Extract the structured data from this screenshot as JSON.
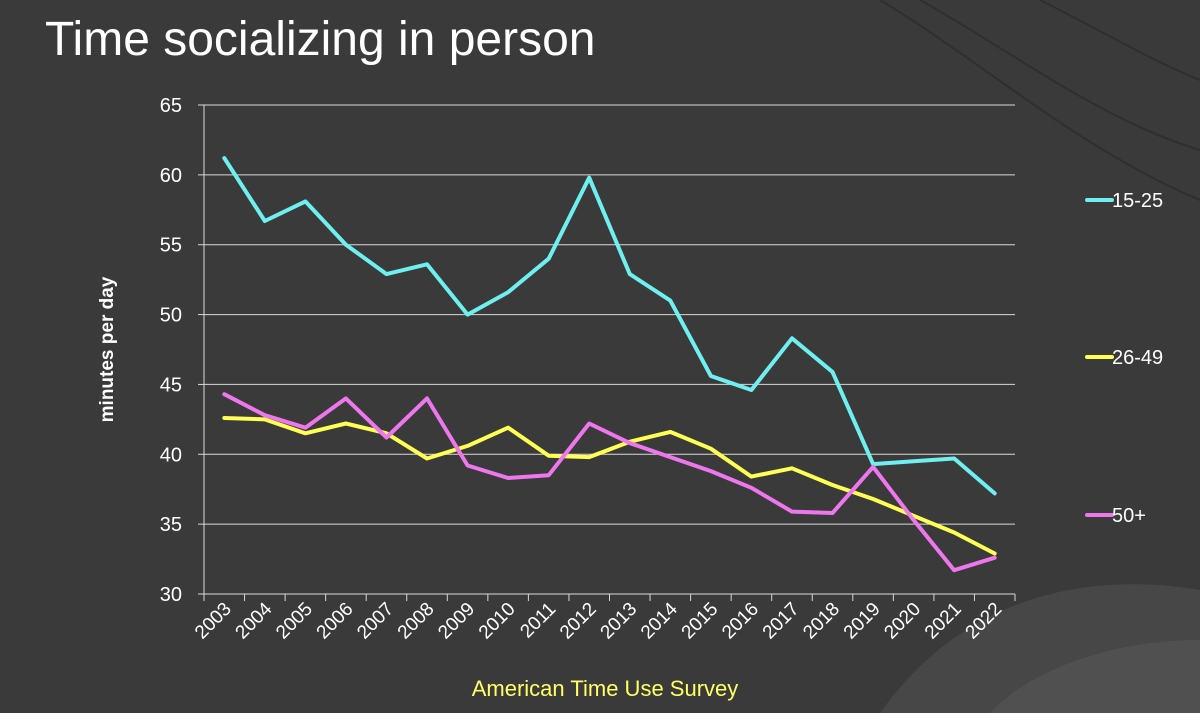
{
  "slide": {
    "title": "Time socializing in person",
    "source": "American Time Use Survey"
  },
  "colors": {
    "background": "#3a3a3a",
    "grid": "#d9d9d9",
    "text": "#ffffff",
    "source_text": "#ffff66"
  },
  "chart_data": {
    "type": "line",
    "title": "Time socializing in person",
    "xlabel": "",
    "ylabel": "minutes per day",
    "ylim": [
      30,
      65
    ],
    "yticks": [
      30,
      35,
      40,
      45,
      50,
      55,
      60,
      65
    ],
    "grid": true,
    "legend_position": "right",
    "x": [
      "2003",
      "2004",
      "2005",
      "2006",
      "2007",
      "2008",
      "2009",
      "2010",
      "2011",
      "2012",
      "2013",
      "2014",
      "2015",
      "2016",
      "2017",
      "2018",
      "2019",
      "2020",
      "2021",
      "2022"
    ],
    "series": [
      {
        "name": "15-25",
        "color": "#6ff0f0",
        "values": [
          61.2,
          56.7,
          58.1,
          55.0,
          52.9,
          53.6,
          50.0,
          51.6,
          54.0,
          59.8,
          52.9,
          51.0,
          45.6,
          44.6,
          48.3,
          45.9,
          39.3,
          39.5,
          39.7,
          37.2
        ]
      },
      {
        "name": "26-49",
        "color": "#ffff55",
        "values": [
          42.6,
          42.5,
          41.5,
          42.2,
          41.5,
          39.7,
          40.6,
          41.9,
          39.9,
          39.8,
          40.9,
          41.6,
          40.4,
          38.4,
          39.0,
          37.8,
          36.8,
          35.6,
          34.4,
          32.9
        ]
      },
      {
        "name": "50+",
        "color": "#ee77ee",
        "values": [
          44.3,
          42.8,
          41.9,
          44.0,
          41.2,
          44.0,
          39.2,
          38.3,
          38.5,
          42.2,
          40.8,
          39.8,
          38.8,
          37.6,
          35.9,
          35.8,
          39.1,
          35.3,
          31.7,
          32.6
        ]
      }
    ]
  }
}
